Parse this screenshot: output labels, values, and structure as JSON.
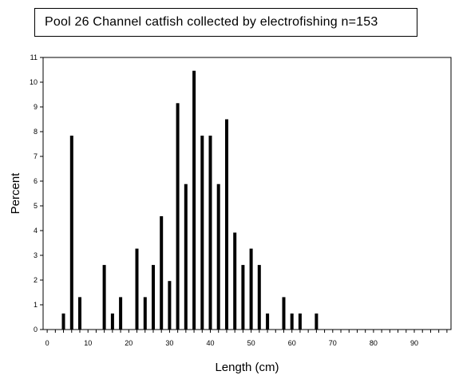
{
  "chart_data": {
    "type": "bar",
    "title": "Pool 26 Channel catfish collected by electrofishing n=153",
    "xlabel": "Length (cm)",
    "ylabel": "Percent",
    "xlim": [
      -1,
      99
    ],
    "ylim": [
      0,
      11
    ],
    "xticks": [
      0,
      10,
      20,
      30,
      40,
      50,
      60,
      70,
      80,
      90
    ],
    "yticks": [
      0,
      1,
      2,
      3,
      4,
      5,
      6,
      7,
      8,
      9,
      10,
      11
    ],
    "x": [
      4,
      6,
      8,
      14,
      16,
      18,
      22,
      24,
      26,
      28,
      30,
      32,
      34,
      36,
      38,
      40,
      42,
      44,
      46,
      48,
      50,
      52,
      54,
      58,
      60,
      62,
      66
    ],
    "values": [
      0.65,
      7.84,
      1.31,
      2.61,
      0.65,
      1.31,
      3.27,
      1.31,
      2.61,
      4.58,
      1.96,
      9.15,
      5.88,
      10.46,
      7.84,
      7.84,
      5.88,
      8.5,
      3.92,
      2.61,
      3.27,
      2.61,
      0.65,
      1.31,
      0.65,
      0.65,
      0.65
    ],
    "color": "#000000",
    "grid": false
  }
}
